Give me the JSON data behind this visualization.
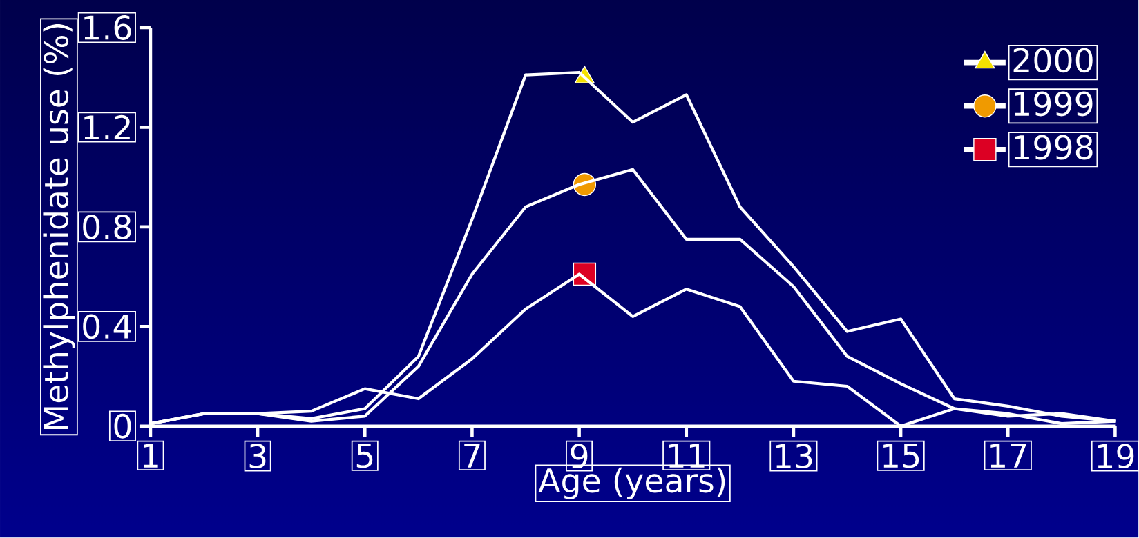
{
  "chart_data": {
    "type": "line",
    "xlabel": "Age (years)",
    "ylabel": "Methylphenidate use (%)",
    "xlim": [
      1,
      19
    ],
    "xticks": [
      1,
      3,
      5,
      7,
      9,
      11,
      13,
      15,
      17,
      19
    ],
    "ylim": [
      0,
      1.6
    ],
    "yticks": [
      0,
      0.4,
      0.8,
      1.2,
      1.6
    ],
    "grid": false,
    "legend": "top right",
    "series": [
      {
        "type": "line",
        "color": "#ffffff",
        "marker": "none",
        "x": [
          1,
          2,
          3,
          4,
          5,
          6,
          7,
          8,
          9,
          10,
          11,
          12,
          13,
          14,
          15,
          16,
          17,
          18,
          19
        ],
        "values": [
          0.01,
          0.05,
          0.05,
          0.03,
          0.07,
          0.28,
          0.83,
          1.41,
          1.42,
          1.22,
          1.33,
          0.88,
          0.64,
          0.38,
          0.43,
          0.11,
          0.08,
          0.04,
          0.02
        ]
      },
      {
        "type": "line",
        "color": "#ffffff",
        "marker": "none",
        "x": [
          1,
          2,
          3,
          4,
          5,
          6,
          7,
          8,
          9,
          10,
          11,
          12,
          13,
          14,
          15,
          16,
          17,
          18,
          19
        ],
        "values": [
          0.01,
          0.05,
          0.05,
          0.02,
          0.04,
          0.24,
          0.61,
          0.88,
          0.97,
          1.03,
          0.75,
          0.75,
          0.56,
          0.28,
          0.17,
          0.07,
          0.05,
          0.01,
          0.02
        ]
      },
      {
        "type": "line",
        "color": "#ffffff",
        "marker": "none",
        "x": [
          1,
          2,
          3,
          4,
          5,
          6,
          7,
          8,
          9,
          10,
          11,
          12,
          13,
          14,
          15,
          16,
          17,
          18,
          19
        ],
        "values": [
          0.01,
          0.05,
          0.05,
          0.06,
          0.15,
          0.11,
          0.27,
          0.47,
          0.61,
          0.44,
          0.55,
          0.48,
          0.18,
          0.16,
          0.0,
          0.07,
          0.04,
          0.05,
          0.02
        ]
      },
      {
        "type": "scatter",
        "name": "2000",
        "color": "#f5e100",
        "marker": "triangle",
        "x": [
          9.1
        ],
        "values": [
          1.4
        ]
      },
      {
        "type": "scatter",
        "name": "1999",
        "color": "#f09a00",
        "marker": "circle",
        "x": [
          9.1
        ],
        "values": [
          0.97
        ]
      },
      {
        "type": "scatter",
        "name": "1998",
        "color": "#dc0023",
        "marker": "square",
        "x": [
          9.1
        ],
        "values": [
          0.61
        ]
      }
    ]
  }
}
